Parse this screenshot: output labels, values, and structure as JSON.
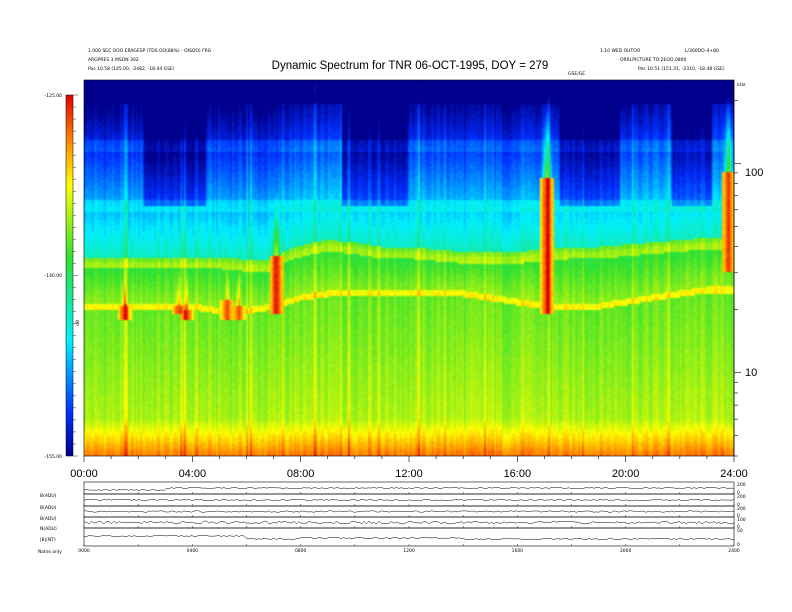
{
  "chart_data": {
    "type": "heatmap",
    "title": "Dynamic Spectrum for TNR 06-OCT-1995, DOY = 279",
    "header_left": [
      "1.000 SEC OOO ERAGESP (TDS OO(88%) - OISOO) FRG",
      "ARGPRES 3 MSON 302",
      "Pos   10.58 (145.00, -2482, -18.44 GSE)"
    ],
    "header_right": [
      "1.10 WED OUTOO",
      "L/300OO-4+80",
      "ORRLPICTURE TO:2EOO,0800",
      "Pos   10.51 (151.31, -2310, -18.48 GSE)"
    ],
    "header_center_small": "GSE/GE",
    "colorbar": {
      "min": -155.0,
      "max": -125.0,
      "tick_labels": [
        "-125.00",
        "-140.00",
        "-155.00"
      ],
      "unit": "dB"
    },
    "x_axis": {
      "tick_labels": [
        "00:00",
        "04:00",
        "08:00",
        "12:00",
        "16:00",
        "20:00",
        "24:00"
      ],
      "range_hours": [
        0,
        24
      ]
    },
    "y_axis": {
      "scale": "log",
      "unit": "kHz",
      "range_khz": [
        4,
        250
      ],
      "tick_labels": [
        "10",
        "100"
      ]
    },
    "features": {
      "plasma_line_khz": [
        [
          0,
          34
        ],
        [
          1,
          34
        ],
        [
          2,
          34
        ],
        [
          3,
          34
        ],
        [
          4,
          34
        ],
        [
          5,
          34
        ],
        [
          6,
          33
        ],
        [
          7,
          33
        ],
        [
          7.5,
          37
        ],
        [
          8.5,
          40
        ],
        [
          9,
          41
        ],
        [
          10,
          40
        ],
        [
          11,
          38
        ],
        [
          12,
          38
        ],
        [
          13,
          37
        ],
        [
          14,
          36
        ],
        [
          15,
          36
        ],
        [
          16,
          36
        ],
        [
          17,
          37
        ],
        [
          18,
          38
        ],
        [
          19,
          38
        ],
        [
          20,
          39
        ],
        [
          21,
          40
        ],
        [
          22,
          41
        ],
        [
          23,
          42
        ],
        [
          24,
          42
        ]
      ],
      "lower_band_edge_khz": [
        [
          0,
          20
        ],
        [
          1,
          20
        ],
        [
          2,
          20
        ],
        [
          3,
          20
        ],
        [
          4,
          20
        ],
        [
          5,
          19
        ],
        [
          6,
          19
        ],
        [
          7,
          20
        ],
        [
          8,
          22
        ],
        [
          9,
          23
        ],
        [
          10,
          23
        ],
        [
          11,
          23
        ],
        [
          12,
          23
        ],
        [
          13,
          23
        ],
        [
          14,
          23
        ],
        [
          15,
          22
        ],
        [
          16,
          21
        ],
        [
          17,
          20
        ],
        [
          18,
          20
        ],
        [
          19,
          20
        ],
        [
          20,
          21
        ],
        [
          21,
          22
        ],
        [
          22,
          23
        ],
        [
          23,
          24
        ],
        [
          24,
          24
        ]
      ],
      "bursts": [
        {
          "t": 1.5,
          "top_khz": 21,
          "bottom_khz": 18,
          "strength": 0.8
        },
        {
          "t": 3.5,
          "top_khz": 21,
          "bottom_khz": 19,
          "strength": 0.8
        },
        {
          "t": 3.8,
          "top_khz": 20,
          "bottom_khz": 18,
          "strength": 0.9
        },
        {
          "t": 5.3,
          "top_khz": 22,
          "bottom_khz": 18,
          "strength": 0.8
        },
        {
          "t": 5.7,
          "top_khz": 21,
          "bottom_khz": 18,
          "strength": 0.7
        },
        {
          "t": 7.1,
          "top_khz": 36,
          "bottom_khz": 19,
          "strength": 1.0
        },
        {
          "t": 17.1,
          "top_khz": 85,
          "bottom_khz": 19,
          "strength": 1.0
        },
        {
          "t": 23.8,
          "top_khz": 90,
          "bottom_khz": 30,
          "strength": 0.9
        }
      ]
    },
    "strip_panels": {
      "labels": [
        "B(ADU)",
        "B(ADU)",
        "B(ADU)",
        "N(ADU)",
        "|B|(NT)"
      ],
      "footer_left": "Notes  only",
      "time_tick_labels": [
        "0000",
        "0400",
        "0800",
        "1200",
        "1600",
        "2000",
        "2400"
      ],
      "right_tick_labels": [
        [
          "200",
          "0"
        ],
        [
          "200",
          "0"
        ],
        [
          "200",
          "0"
        ],
        [
          "100",
          "0"
        ],
        [
          "50",
          "0"
        ]
      ]
    }
  }
}
